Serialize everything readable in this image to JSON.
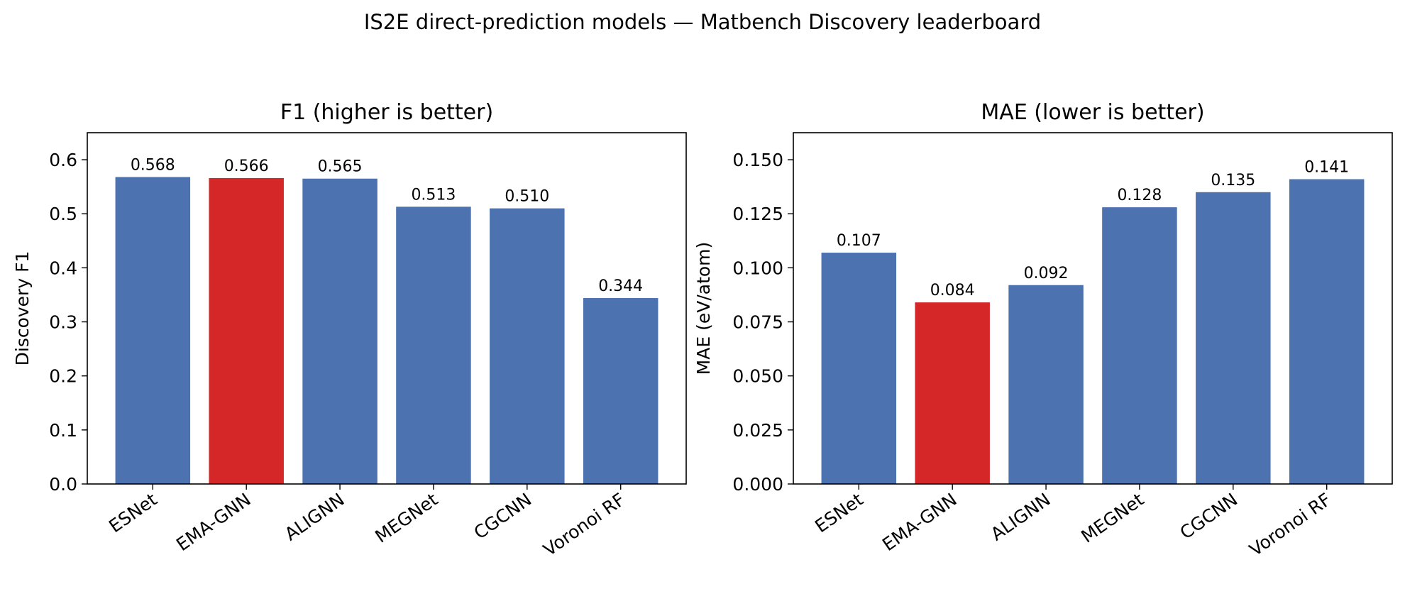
{
  "figure": {
    "title": "IS2E direct-prediction models — Matbench Discovery leaderboard"
  },
  "colors": {
    "default_bar": "#4c72b0",
    "highlight_bar": "#d62728",
    "highlight_category": "EMA-GNN"
  },
  "chart_data": [
    {
      "type": "bar",
      "title": "F1 (higher is better)",
      "xlabel": "",
      "ylabel": "Discovery F1",
      "categories": [
        "ESNet",
        "EMA-GNN",
        "ALIGNN",
        "MEGNet",
        "CGCNN",
        "Voronoi RF"
      ],
      "values": [
        0.568,
        0.566,
        0.565,
        0.513,
        0.51,
        0.344
      ],
      "value_labels": [
        "0.568",
        "0.566",
        "0.565",
        "0.513",
        "0.510",
        "0.344"
      ],
      "ylim": [
        0,
        0.65
      ],
      "yticks": [
        0.0,
        0.1,
        0.2,
        0.3,
        0.4,
        0.5,
        0.6
      ],
      "ytick_labels": [
        "0.0",
        "0.1",
        "0.2",
        "0.3",
        "0.4",
        "0.5",
        "0.6"
      ],
      "grid": false,
      "legend": "none"
    },
    {
      "type": "bar",
      "title": "MAE (lower is better)",
      "xlabel": "",
      "ylabel": "MAE (eV/atom)",
      "categories": [
        "ESNet",
        "EMA-GNN",
        "ALIGNN",
        "MEGNet",
        "CGCNN",
        "Voronoi RF"
      ],
      "values": [
        0.107,
        0.084,
        0.092,
        0.128,
        0.135,
        0.141
      ],
      "value_labels": [
        "0.107",
        "0.084",
        "0.092",
        "0.128",
        "0.135",
        "0.141"
      ],
      "ylim": [
        0,
        0.1625
      ],
      "yticks": [
        0.0,
        0.025,
        0.05,
        0.075,
        0.1,
        0.125,
        0.15
      ],
      "ytick_labels": [
        "0.000",
        "0.025",
        "0.050",
        "0.075",
        "0.100",
        "0.125",
        "0.150"
      ],
      "grid": false,
      "legend": "none"
    }
  ]
}
